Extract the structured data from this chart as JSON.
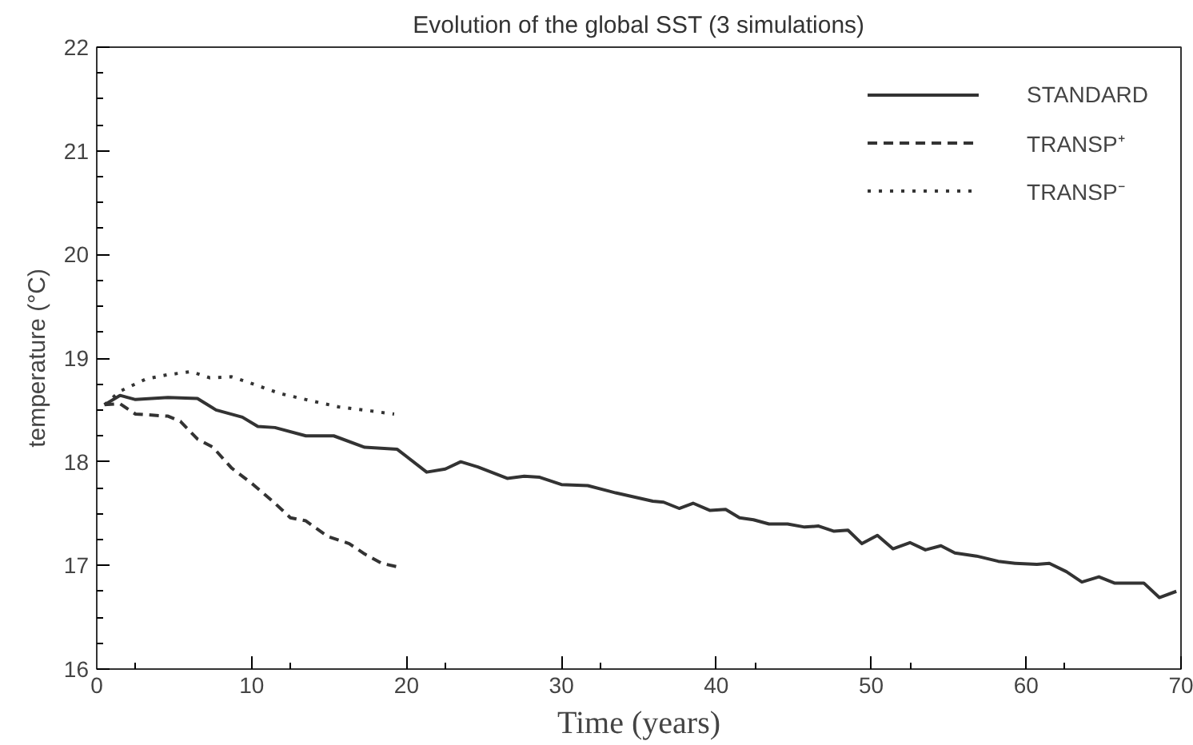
{
  "chart_data": {
    "type": "line",
    "title": "Evolution of the global SST (3 simulations)",
    "xlabel": "Time (years)",
    "ylabel": "temperature (°C)",
    "xlim": [
      0,
      70
    ],
    "xticks": [
      0,
      10,
      20,
      30,
      40,
      50,
      60,
      70
    ],
    "ylim": [
      16,
      22
    ],
    "yticks": [
      16,
      17,
      18,
      19,
      20,
      21,
      22
    ],
    "grid": false,
    "legend": "top right",
    "marker": "none",
    "series": [
      {
        "name": "STANDARD",
        "color": "#333333",
        "line_style": "solid",
        "x": [
          0.5,
          1.5,
          2.5,
          4.6,
          6.5,
          7.7,
          9.4,
          10.4,
          11.5,
          13.5,
          15.3,
          17.3,
          19.4,
          21.3,
          22.5,
          23.5,
          24.6,
          26.5,
          27.6,
          28.6,
          30,
          31.7,
          33.5,
          35.9,
          36.6,
          37.6,
          38.5,
          39.6,
          40.6,
          41.5,
          42.4,
          43.4,
          44.6,
          45.7,
          46.6,
          47.6,
          48.5,
          49.4,
          50.4,
          51.4,
          52.5,
          53.5,
          54.5,
          55.4,
          56.8,
          58.2,
          59.3,
          60.7,
          61.5,
          62.6,
          63.6,
          64.7,
          65.7,
          67.6,
          68.6,
          69.7
        ],
        "values": [
          18.55,
          18.64,
          18.6,
          18.62,
          18.61,
          18.5,
          18.43,
          18.34,
          18.33,
          18.25,
          18.25,
          18.14,
          18.12,
          17.9,
          17.93,
          18.0,
          17.95,
          17.84,
          17.86,
          17.85,
          17.78,
          17.77,
          17.7,
          17.62,
          17.61,
          17.55,
          17.6,
          17.53,
          17.54,
          17.46,
          17.44,
          17.4,
          17.4,
          17.37,
          17.38,
          17.33,
          17.34,
          17.21,
          17.29,
          17.16,
          17.22,
          17.15,
          17.19,
          17.12,
          17.09,
          17.04,
          17.02,
          17.01,
          17.02,
          16.94,
          16.84,
          16.89,
          16.83,
          16.83,
          16.69,
          16.75
        ]
      },
      {
        "name": "TRANSP⁺",
        "color": "#333333",
        "line_style": "dashed",
        "x": [
          0.5,
          1.5,
          2.5,
          4.6,
          5.4,
          6.5,
          7.5,
          8.7,
          10.1,
          11.5,
          12.5,
          13.5,
          14.9,
          16.3,
          17.3,
          18.4,
          19.6
        ],
        "values": [
          18.55,
          18.56,
          18.46,
          18.44,
          18.39,
          18.22,
          18.14,
          17.94,
          17.78,
          17.6,
          17.46,
          17.43,
          17.28,
          17.21,
          17.11,
          17.02,
          16.98
        ]
      },
      {
        "name": "TRANSP⁻",
        "color": "#333333",
        "line_style": "dotted",
        "x": [
          0.5,
          1.5,
          3.2,
          4.6,
          6.1,
          7.3,
          8.7,
          10.1,
          11.8,
          13.5,
          15.6,
          17.7,
          19.2
        ],
        "values": [
          18.55,
          18.68,
          18.8,
          18.84,
          18.87,
          18.81,
          18.82,
          18.75,
          18.66,
          18.6,
          18.53,
          18.49,
          18.46
        ]
      }
    ]
  }
}
